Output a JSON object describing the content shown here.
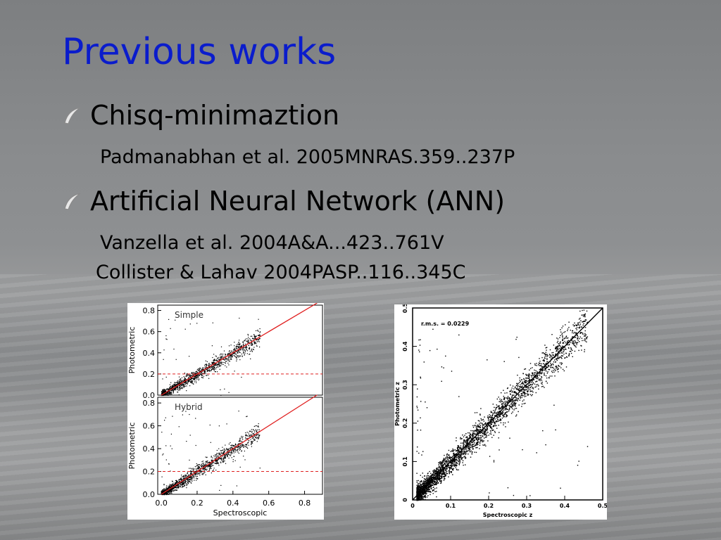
{
  "slide": {
    "title": "Previous works",
    "bullets": [
      {
        "label": "Chisq-minimaztion",
        "icon": "curved-bullet-icon"
      },
      {
        "label": "Artificial Neural Network (ANN)",
        "icon": "curved-bullet-icon"
      }
    ],
    "refs": [
      "Padmanabhan et al. 2005MNRAS.359..237P",
      "Vanzella et al. 2004A&A...423..761V",
      "Collister & Lahav 2004PASP..116..345C"
    ]
  },
  "chart_data": [
    {
      "type": "scatter",
      "title": "Simple",
      "xlabel": "",
      "ylabel": "Photometric",
      "xlim": [
        -0.02,
        0.9
      ],
      "ylim": [
        0.0,
        0.85
      ],
      "yticks": [
        "0.0",
        "0.2",
        "0.4",
        "0.6",
        "0.8"
      ],
      "reference_line": "y = x (solid red)",
      "threshold_line": {
        "y": 0.2,
        "style": "dashed red"
      },
      "line_color": "#e02020"
    },
    {
      "type": "scatter",
      "title": "Hybrid",
      "xlabel": "Spectroscopic",
      "ylabel": "Photometric",
      "xlim": [
        -0.02,
        0.9
      ],
      "ylim": [
        0.0,
        0.85
      ],
      "xticks": [
        "0.0",
        "0.2",
        "0.4",
        "0.6",
        "0.8"
      ],
      "yticks": [
        "0.0",
        "0.2",
        "0.4",
        "0.6",
        "0.8"
      ],
      "reference_line": "y = x (solid red)",
      "threshold_line": {
        "y": 0.2,
        "style": "dashed red"
      },
      "line_color": "#e02020"
    },
    {
      "type": "scatter",
      "title": "",
      "annotation": "r.m.s. = 0.0229",
      "xlabel": "Spectroscopic z",
      "ylabel": "Photometric z",
      "xlim": [
        0,
        0.5
      ],
      "ylim": [
        0,
        0.5
      ],
      "xticks": [
        "0",
        "0.1",
        "0.2",
        "0.3",
        "0.4",
        "0.5"
      ],
      "yticks": [
        "0",
        "0.1",
        "0.2",
        "0.3",
        "0.4",
        "0.5"
      ],
      "reference_line": "y = x (solid black)",
      "line_color": "#000000"
    }
  ]
}
